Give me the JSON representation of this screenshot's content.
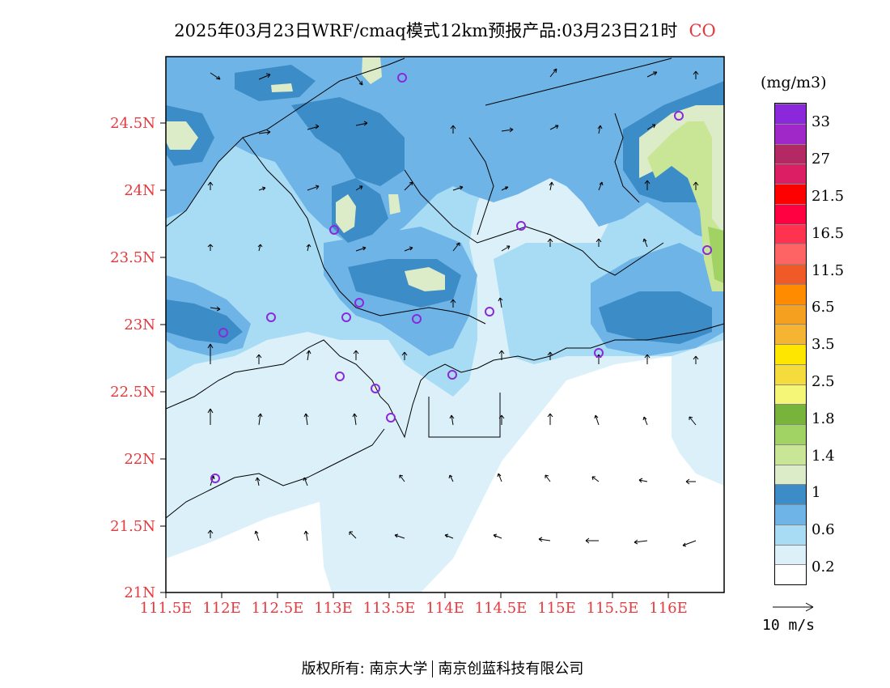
{
  "title": {
    "text": "2025年03月23日WRF/cmaq模式12km预报产品:03月23日21时",
    "species": "CO"
  },
  "map": {
    "lat_labels": [
      "24.5N",
      "24N",
      "23.5N",
      "23N",
      "22.5N",
      "22N",
      "21.5N",
      "21N"
    ],
    "lon_labels": [
      "111.5E",
      "112E",
      "112.5E",
      "113E",
      "113.5E",
      "114E",
      "114.5E",
      "115E",
      "115.5E",
      "116E"
    ]
  },
  "colorbar": {
    "unit": "(mg/m3)",
    "colors": [
      "#ffffff",
      "#dcf0fa",
      "#a8dcf5",
      "#6eb4e6",
      "#3c8cc8",
      "#dcebc8",
      "#c8e696",
      "#a0d264",
      "#78b43c",
      "#f5f578",
      "#f5dc3c",
      "#ffe600",
      "#f5b432",
      "#f5a01e",
      "#ff8c00",
      "#f05a28",
      "#ff6464",
      "#ff3250",
      "#ff0040",
      "#ff0000",
      "#dc1e64",
      "#b42864",
      "#a028c8",
      "#8c28dc"
    ],
    "labels": [
      "0.2",
      "0.6",
      "1",
      "1.4",
      "1.8",
      "2.5",
      "3.5",
      "6.5",
      "11.5",
      "16.5",
      "21.5",
      "27",
      "33"
    ]
  },
  "reference_vector": {
    "label": "10 m/s"
  },
  "footer": {
    "left": "版权所有: 南京大学",
    "right": "南京创蓝科技有限公司"
  }
}
